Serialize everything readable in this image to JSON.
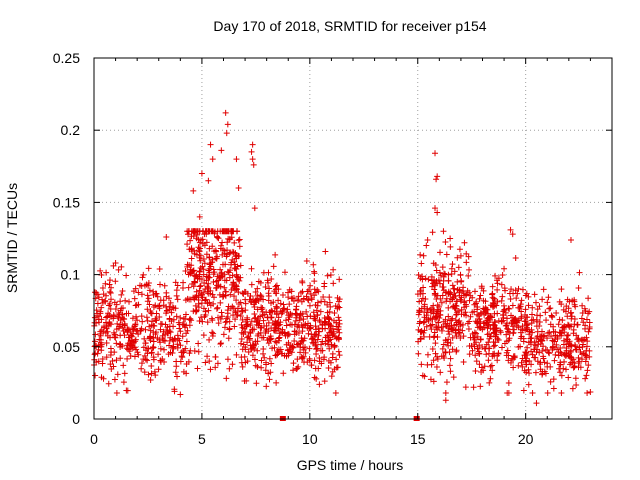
{
  "chart_data": {
    "type": "scatter",
    "title": "Day 170 of 2018, SRMTID for receiver p154",
    "xlabel": "GPS time / hours",
    "ylabel": "SRMTID / TECUs",
    "xlim": [
      0,
      24
    ],
    "ylim": [
      0,
      0.25
    ],
    "x_ticks": [
      0,
      5,
      10,
      15,
      20
    ],
    "x_tick_labels": [
      "0",
      "5",
      "10",
      "15",
      "20"
    ],
    "y_ticks": [
      0,
      0.05,
      0.1,
      0.15,
      0.2,
      0.25
    ],
    "y_tick_labels": [
      "0",
      "0.05",
      "0.1",
      "0.15",
      "0.2",
      "0.25"
    ],
    "grid": true,
    "marker": "plus",
    "color": "#e00000",
    "series": [
      {
        "name": "SRMTID",
        "segments": [
          {
            "x_start": 0.0,
            "x_end": 4.3,
            "center": 0.062,
            "spread": 0.018,
            "count": 420
          },
          {
            "x_start": 4.3,
            "x_end": 6.8,
            "center": 0.1,
            "spread": 0.028,
            "count": 380
          },
          {
            "x_start": 6.8,
            "x_end": 8.8,
            "center": 0.065,
            "spread": 0.016,
            "count": 240
          },
          {
            "x_start": 8.8,
            "x_end": 11.4,
            "center": 0.065,
            "spread": 0.018,
            "count": 300
          },
          {
            "x_start": 15.0,
            "x_end": 17.5,
            "center": 0.075,
            "spread": 0.022,
            "count": 300
          },
          {
            "x_start": 17.5,
            "x_end": 19.8,
            "center": 0.063,
            "spread": 0.017,
            "count": 260
          },
          {
            "x_start": 19.8,
            "x_end": 23.0,
            "center": 0.055,
            "spread": 0.016,
            "count": 320
          }
        ],
        "highlights": [
          {
            "x": 6.1,
            "y": 0.212
          },
          {
            "x": 6.2,
            "y": 0.204
          },
          {
            "x": 6.15,
            "y": 0.198
          },
          {
            "x": 5.4,
            "y": 0.19
          },
          {
            "x": 5.9,
            "y": 0.186
          },
          {
            "x": 6.6,
            "y": 0.18
          },
          {
            "x": 7.35,
            "y": 0.19
          },
          {
            "x": 7.3,
            "y": 0.185
          },
          {
            "x": 7.4,
            "y": 0.176
          },
          {
            "x": 7.35,
            "y": 0.18
          },
          {
            "x": 5.0,
            "y": 0.17
          },
          {
            "x": 5.3,
            "y": 0.165
          },
          {
            "x": 5.5,
            "y": 0.18
          },
          {
            "x": 6.7,
            "y": 0.16
          },
          {
            "x": 4.6,
            "y": 0.158
          },
          {
            "x": 7.45,
            "y": 0.146
          },
          {
            "x": 4.9,
            "y": 0.14
          },
          {
            "x": 3.35,
            "y": 0.126
          },
          {
            "x": 15.8,
            "y": 0.184
          },
          {
            "x": 15.9,
            "y": 0.168
          },
          {
            "x": 15.85,
            "y": 0.166
          },
          {
            "x": 15.8,
            "y": 0.146
          },
          {
            "x": 15.9,
            "y": 0.143
          },
          {
            "x": 16.5,
            "y": 0.125
          },
          {
            "x": 19.3,
            "y": 0.131
          },
          {
            "x": 19.4,
            "y": 0.128
          },
          {
            "x": 22.1,
            "y": 0.124
          },
          {
            "x": 1.0,
            "y": 0.108
          },
          {
            "x": 0.9,
            "y": 0.106
          },
          {
            "x": 17.0,
            "y": 0.113
          },
          {
            "x": 20.5,
            "y": 0.011
          },
          {
            "x": 16.3,
            "y": 0.013
          },
          {
            "x": 4.0,
            "y": 0.017
          }
        ],
        "zeros": [
          {
            "x": 8.75,
            "y": 0.0
          },
          {
            "x": 14.95,
            "y": 0.0
          }
        ]
      }
    ]
  }
}
